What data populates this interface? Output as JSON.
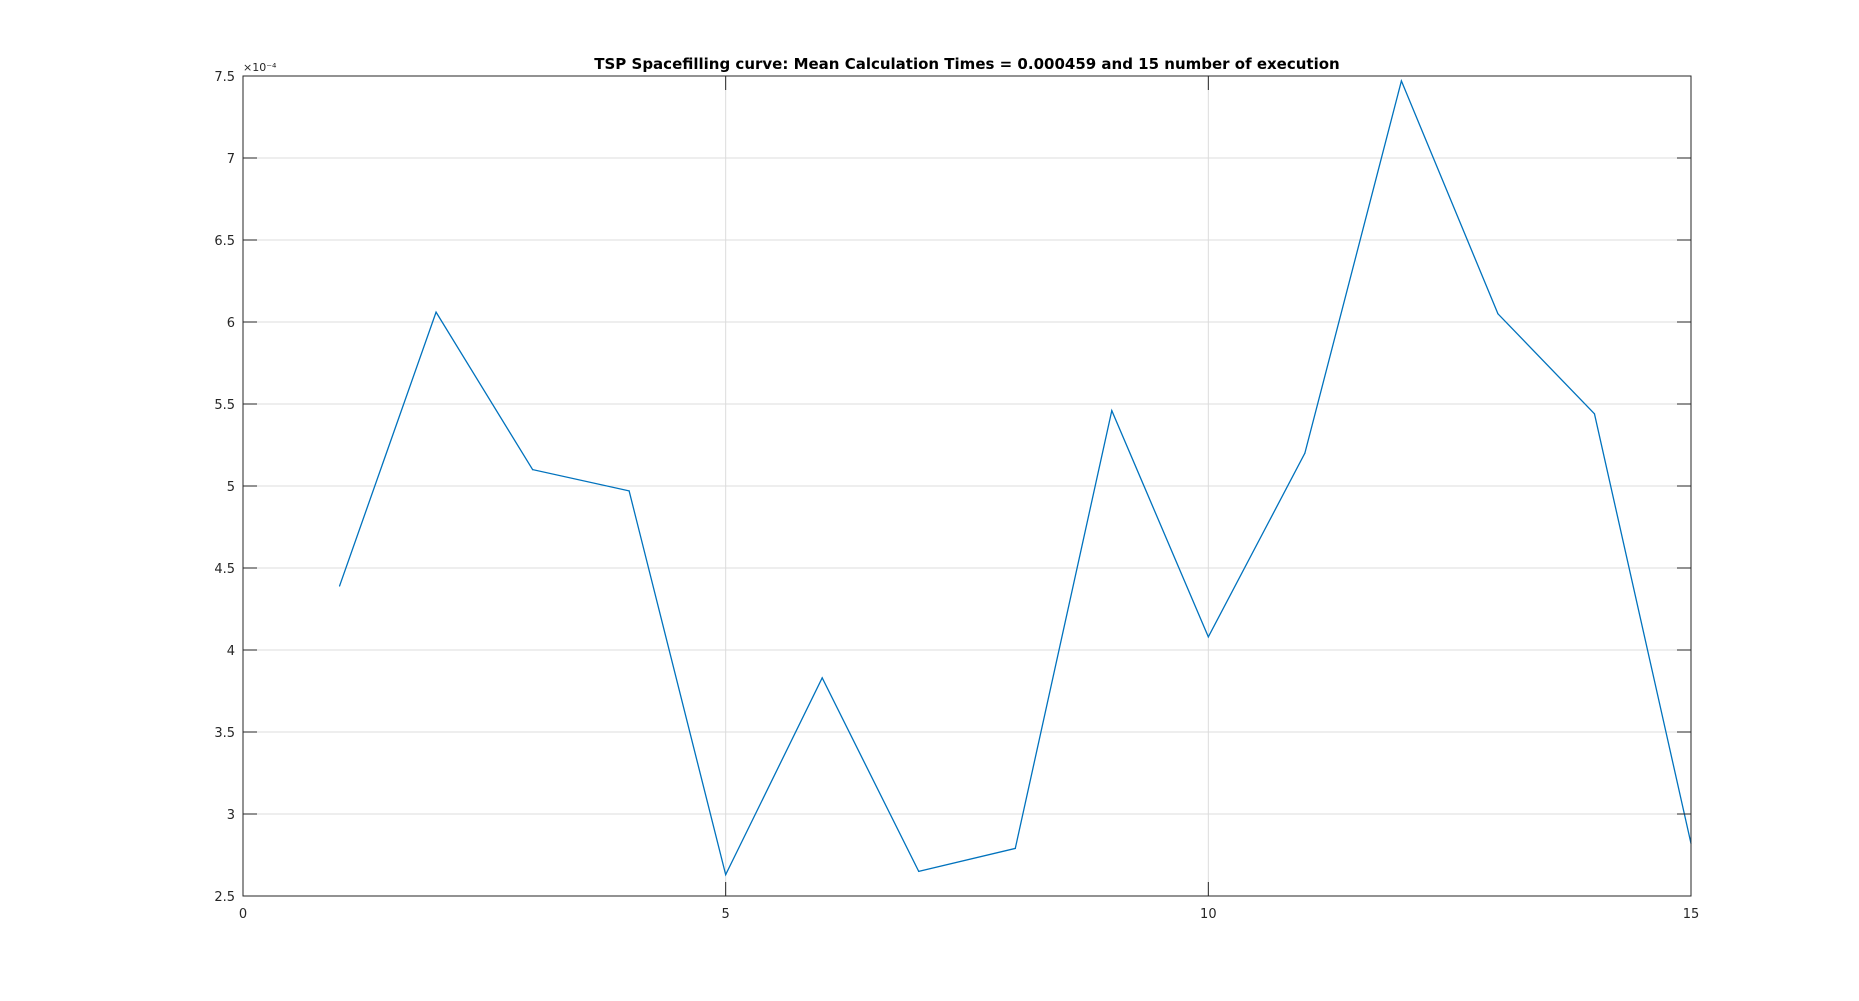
{
  "chart_data": {
    "type": "line",
    "title": "TSP Spacefilling curve: Mean Calculation Times = 0.000459 and 15 number of execution",
    "xlabel": "",
    "ylabel": "",
    "xlim": [
      0,
      15
    ],
    "ylim": [
      2.5,
      7.5
    ],
    "y_exponent_label": "×10⁻⁴",
    "xticks": [
      0,
      5,
      10,
      15
    ],
    "xtick_labels": [
      "0",
      "5",
      "10",
      "15"
    ],
    "yticks": [
      2.5,
      3,
      3.5,
      4,
      4.5,
      5,
      5.5,
      6,
      6.5,
      7,
      7.5
    ],
    "ytick_labels": [
      "2.5",
      "3",
      "3.5",
      "4",
      "4.5",
      "5",
      "5.5",
      "6",
      "6.5",
      "7",
      "7.5"
    ],
    "grid": true,
    "legend": "none",
    "series": [
      {
        "color": "#0072BD",
        "x": [
          1,
          2,
          3,
          4,
          5,
          6,
          7,
          8,
          9,
          10,
          11,
          12,
          13,
          14,
          15
        ],
        "y": [
          4.39,
          6.06,
          5.1,
          4.97,
          2.63,
          3.83,
          2.65,
          2.79,
          5.46,
          4.08,
          5.2,
          7.47,
          6.05,
          5.44,
          2.82
        ]
      }
    ]
  }
}
